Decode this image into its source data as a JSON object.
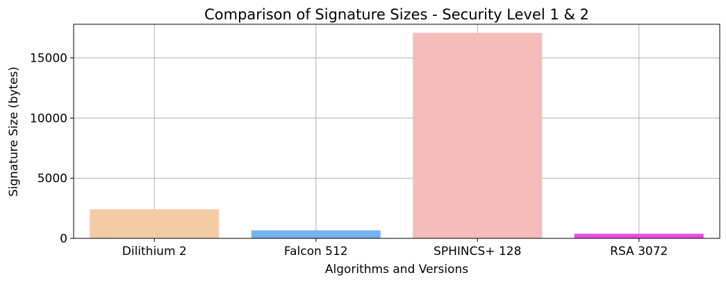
{
  "chart_data": {
    "type": "bar",
    "title": "Comparison of Signature Sizes - Security Level 1 & 2",
    "xlabel": "Algorithms and Versions",
    "ylabel": "Signature Size (bytes)",
    "categories": [
      "Dilithium 2",
      "Falcon 512",
      "SPHINCS+ 128",
      "RSA 3072"
    ],
    "values": [
      2420,
      666,
      17088,
      384
    ],
    "colors": [
      "#f3ccA6",
      "#77b3f0",
      "#f5bcbc",
      "#e74ce0"
    ],
    "ylim": [
      0,
      17800
    ],
    "yticks": [
      0,
      5000,
      10000,
      15000
    ],
    "ytick_labels": [
      "0",
      "5000",
      "10000",
      "15000"
    ],
    "grid": true,
    "legend": false
  }
}
